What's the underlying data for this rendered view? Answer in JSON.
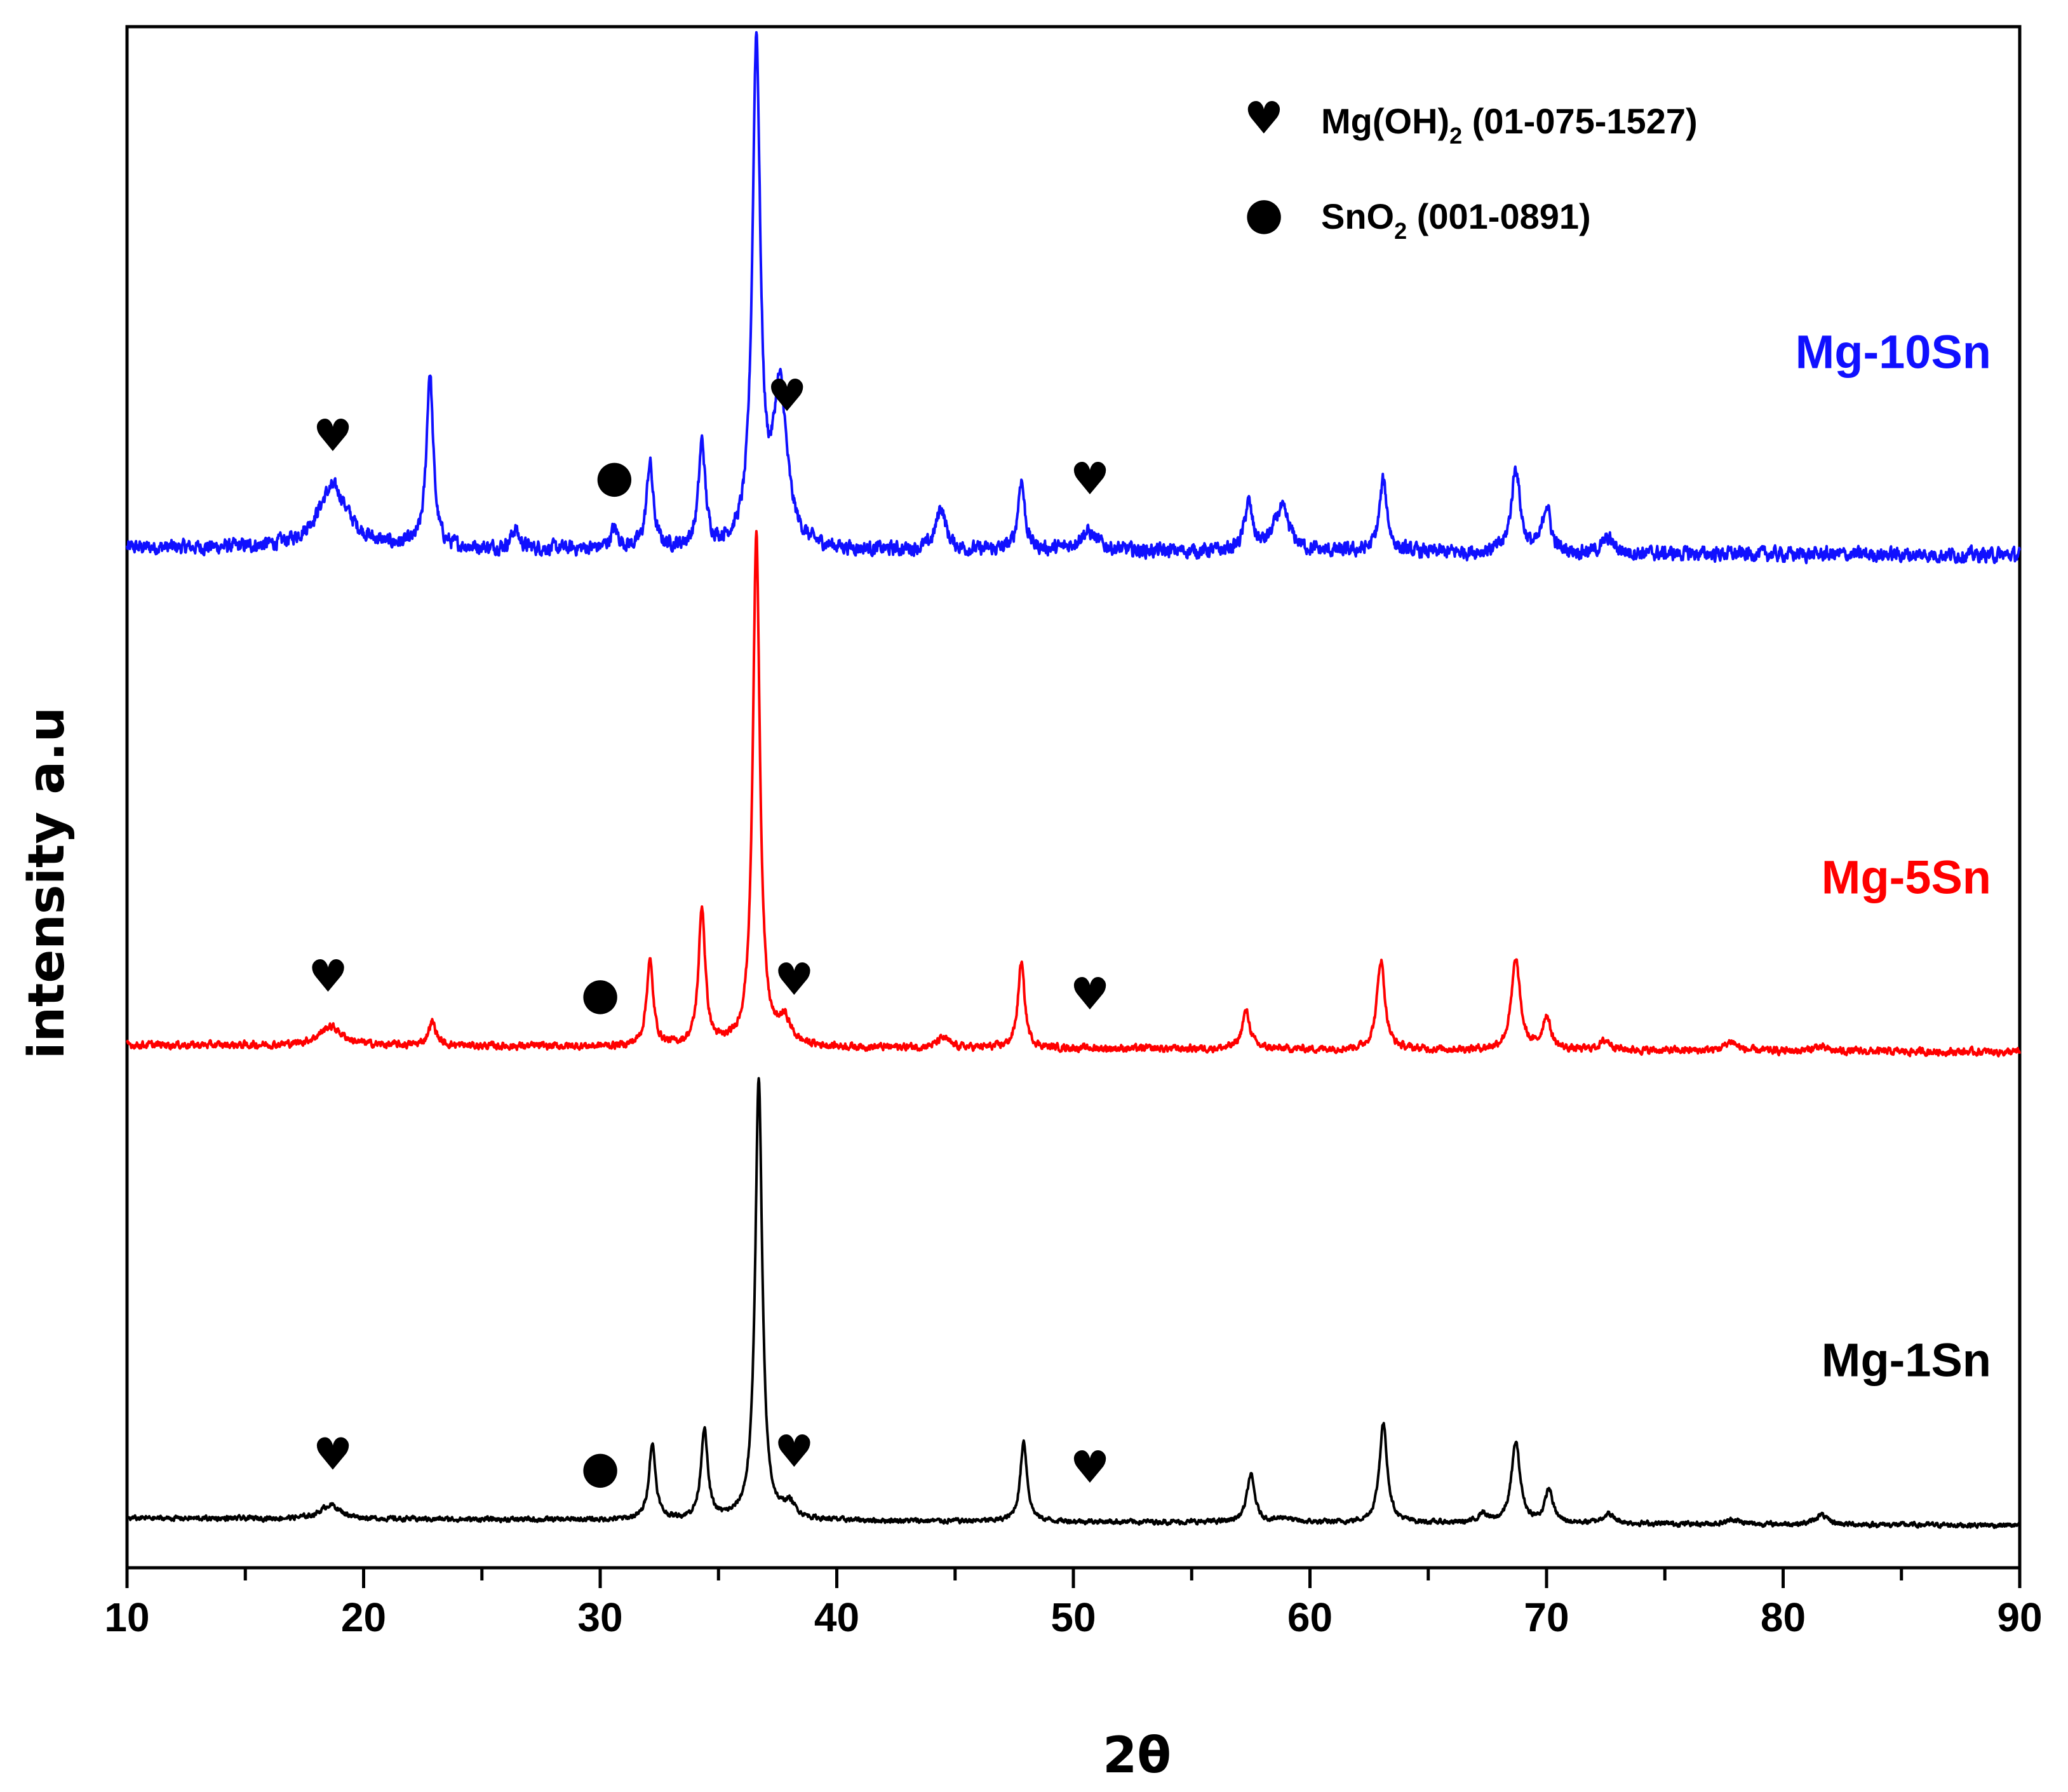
{
  "chart_data": {
    "type": "line",
    "title": "",
    "xlabel": "2θ",
    "ylabel": "intensity a.u",
    "xlim": [
      10,
      90
    ],
    "x_ticks": [
      10,
      20,
      30,
      40,
      50,
      60,
      70,
      80,
      90
    ],
    "x_tick_labels": [
      "10",
      "20",
      "30",
      "40",
      "50",
      "60",
      "70",
      "80",
      "90"
    ],
    "y_ticks_shown": false,
    "grid": false,
    "series": [
      {
        "name": "Mg-10Sn",
        "label": "Mg-10Sn",
        "color": "#1010ff",
        "offset": 2.05,
        "baseline": 1.0,
        "noise": 0.012,
        "peaks": [
          {
            "x": 18.7,
            "height": 0.13,
            "width": 0.8
          },
          {
            "x": 22.8,
            "height": 0.37,
            "width": 0.17
          },
          {
            "x": 26.4,
            "height": 0.04,
            "width": 0.2
          },
          {
            "x": 30.6,
            "height": 0.04,
            "width": 0.2
          },
          {
            "x": 32.1,
            "height": 0.18,
            "width": 0.17
          },
          {
            "x": 34.3,
            "height": 0.22,
            "width": 0.17
          },
          {
            "x": 36.6,
            "height": 1.06,
            "width": 0.2
          },
          {
            "x": 37.6,
            "height": 0.33,
            "width": 0.35
          },
          {
            "x": 44.4,
            "height": 0.09,
            "width": 0.25
          },
          {
            "x": 47.8,
            "height": 0.15,
            "width": 0.17
          },
          {
            "x": 50.6,
            "height": 0.04,
            "width": 0.5
          },
          {
            "x": 57.4,
            "height": 0.1,
            "width": 0.2
          },
          {
            "x": 58.8,
            "height": 0.09,
            "width": 0.4
          },
          {
            "x": 63.1,
            "height": 0.15,
            "width": 0.2
          },
          {
            "x": 68.7,
            "height": 0.18,
            "width": 0.22
          },
          {
            "x": 70.0,
            "height": 0.1,
            "width": 0.2
          },
          {
            "x": 72.6,
            "height": 0.03,
            "width": 0.3
          }
        ],
        "annotations": [
          {
            "x": 18.7,
            "symbol": "heart"
          },
          {
            "x": 30.6,
            "symbol": "dot"
          },
          {
            "x": 37.9,
            "symbol": "heart"
          },
          {
            "x": 50.7,
            "symbol": "heart"
          }
        ]
      },
      {
        "name": "Mg-5Sn",
        "label": "Mg-5Sn",
        "color": "#ff0000",
        "offset": 1.0,
        "baseline": 1.0,
        "noise": 0.006,
        "peaks": [
          {
            "x": 18.6,
            "height": 0.04,
            "width": 0.6
          },
          {
            "x": 22.9,
            "height": 0.05,
            "width": 0.2
          },
          {
            "x": 32.1,
            "height": 0.18,
            "width": 0.17
          },
          {
            "x": 34.3,
            "height": 0.29,
            "width": 0.17
          },
          {
            "x": 36.6,
            "height": 1.08,
            "width": 0.18
          },
          {
            "x": 37.8,
            "height": 0.05,
            "width": 0.3
          },
          {
            "x": 44.5,
            "height": 0.02,
            "width": 0.3
          },
          {
            "x": 47.8,
            "height": 0.18,
            "width": 0.17
          },
          {
            "x": 57.3,
            "height": 0.08,
            "width": 0.2
          },
          {
            "x": 63.0,
            "height": 0.19,
            "width": 0.2
          },
          {
            "x": 68.7,
            "height": 0.19,
            "width": 0.22
          },
          {
            "x": 70.0,
            "height": 0.07,
            "width": 0.2
          },
          {
            "x": 72.5,
            "height": 0.02,
            "width": 0.3
          },
          {
            "x": 77.8,
            "height": 0.02,
            "width": 0.3
          },
          {
            "x": 81.5,
            "height": 0.01,
            "width": 0.3
          }
        ],
        "annotations": [
          {
            "x": 18.5,
            "symbol": "heart"
          },
          {
            "x": 30.0,
            "symbol": "dot"
          },
          {
            "x": 38.2,
            "symbol": "heart"
          },
          {
            "x": 50.7,
            "symbol": "heart"
          }
        ]
      },
      {
        "name": "Mg-1Sn",
        "label": "Mg-1Sn",
        "color": "#000000",
        "offset": 0.0,
        "baseline": 1.0,
        "noise": 0.004,
        "peaks": [
          {
            "x": 18.6,
            "height": 0.03,
            "width": 0.5
          },
          {
            "x": 32.2,
            "height": 0.16,
            "width": 0.17
          },
          {
            "x": 34.4,
            "height": 0.19,
            "width": 0.17
          },
          {
            "x": 36.7,
            "height": 0.93,
            "width": 0.18
          },
          {
            "x": 38.0,
            "height": 0.03,
            "width": 0.3
          },
          {
            "x": 47.9,
            "height": 0.17,
            "width": 0.17
          },
          {
            "x": 57.5,
            "height": 0.1,
            "width": 0.2
          },
          {
            "x": 58.9,
            "height": 0.01,
            "width": 0.3
          },
          {
            "x": 63.1,
            "height": 0.21,
            "width": 0.2
          },
          {
            "x": 67.3,
            "height": 0.02,
            "width": 0.2
          },
          {
            "x": 68.7,
            "height": 0.17,
            "width": 0.22
          },
          {
            "x": 70.1,
            "height": 0.07,
            "width": 0.2
          },
          {
            "x": 72.6,
            "height": 0.02,
            "width": 0.3
          },
          {
            "x": 77.9,
            "height": 0.01,
            "width": 0.3
          },
          {
            "x": 81.6,
            "height": 0.02,
            "width": 0.3
          }
        ],
        "annotations": [
          {
            "x": 18.7,
            "symbol": "heart"
          },
          {
            "x": 30.0,
            "symbol": "dot"
          },
          {
            "x": 38.2,
            "symbol": "heart"
          },
          {
            "x": 50.7,
            "symbol": "heart"
          }
        ]
      }
    ],
    "legend": {
      "position": "top-right",
      "entries": [
        {
          "symbol": "heart",
          "symbol_char": "♥",
          "text_main": "Mg(OH)",
          "text_sub": "2",
          "text_rest": " (01-075-1527)"
        },
        {
          "symbol": "dot",
          "symbol_char": "●",
          "text_main": "SnO",
          "text_sub": "2",
          "text_rest": " (001-0891)"
        }
      ]
    }
  },
  "symbols": {
    "heart": "♥",
    "dot": "●"
  }
}
